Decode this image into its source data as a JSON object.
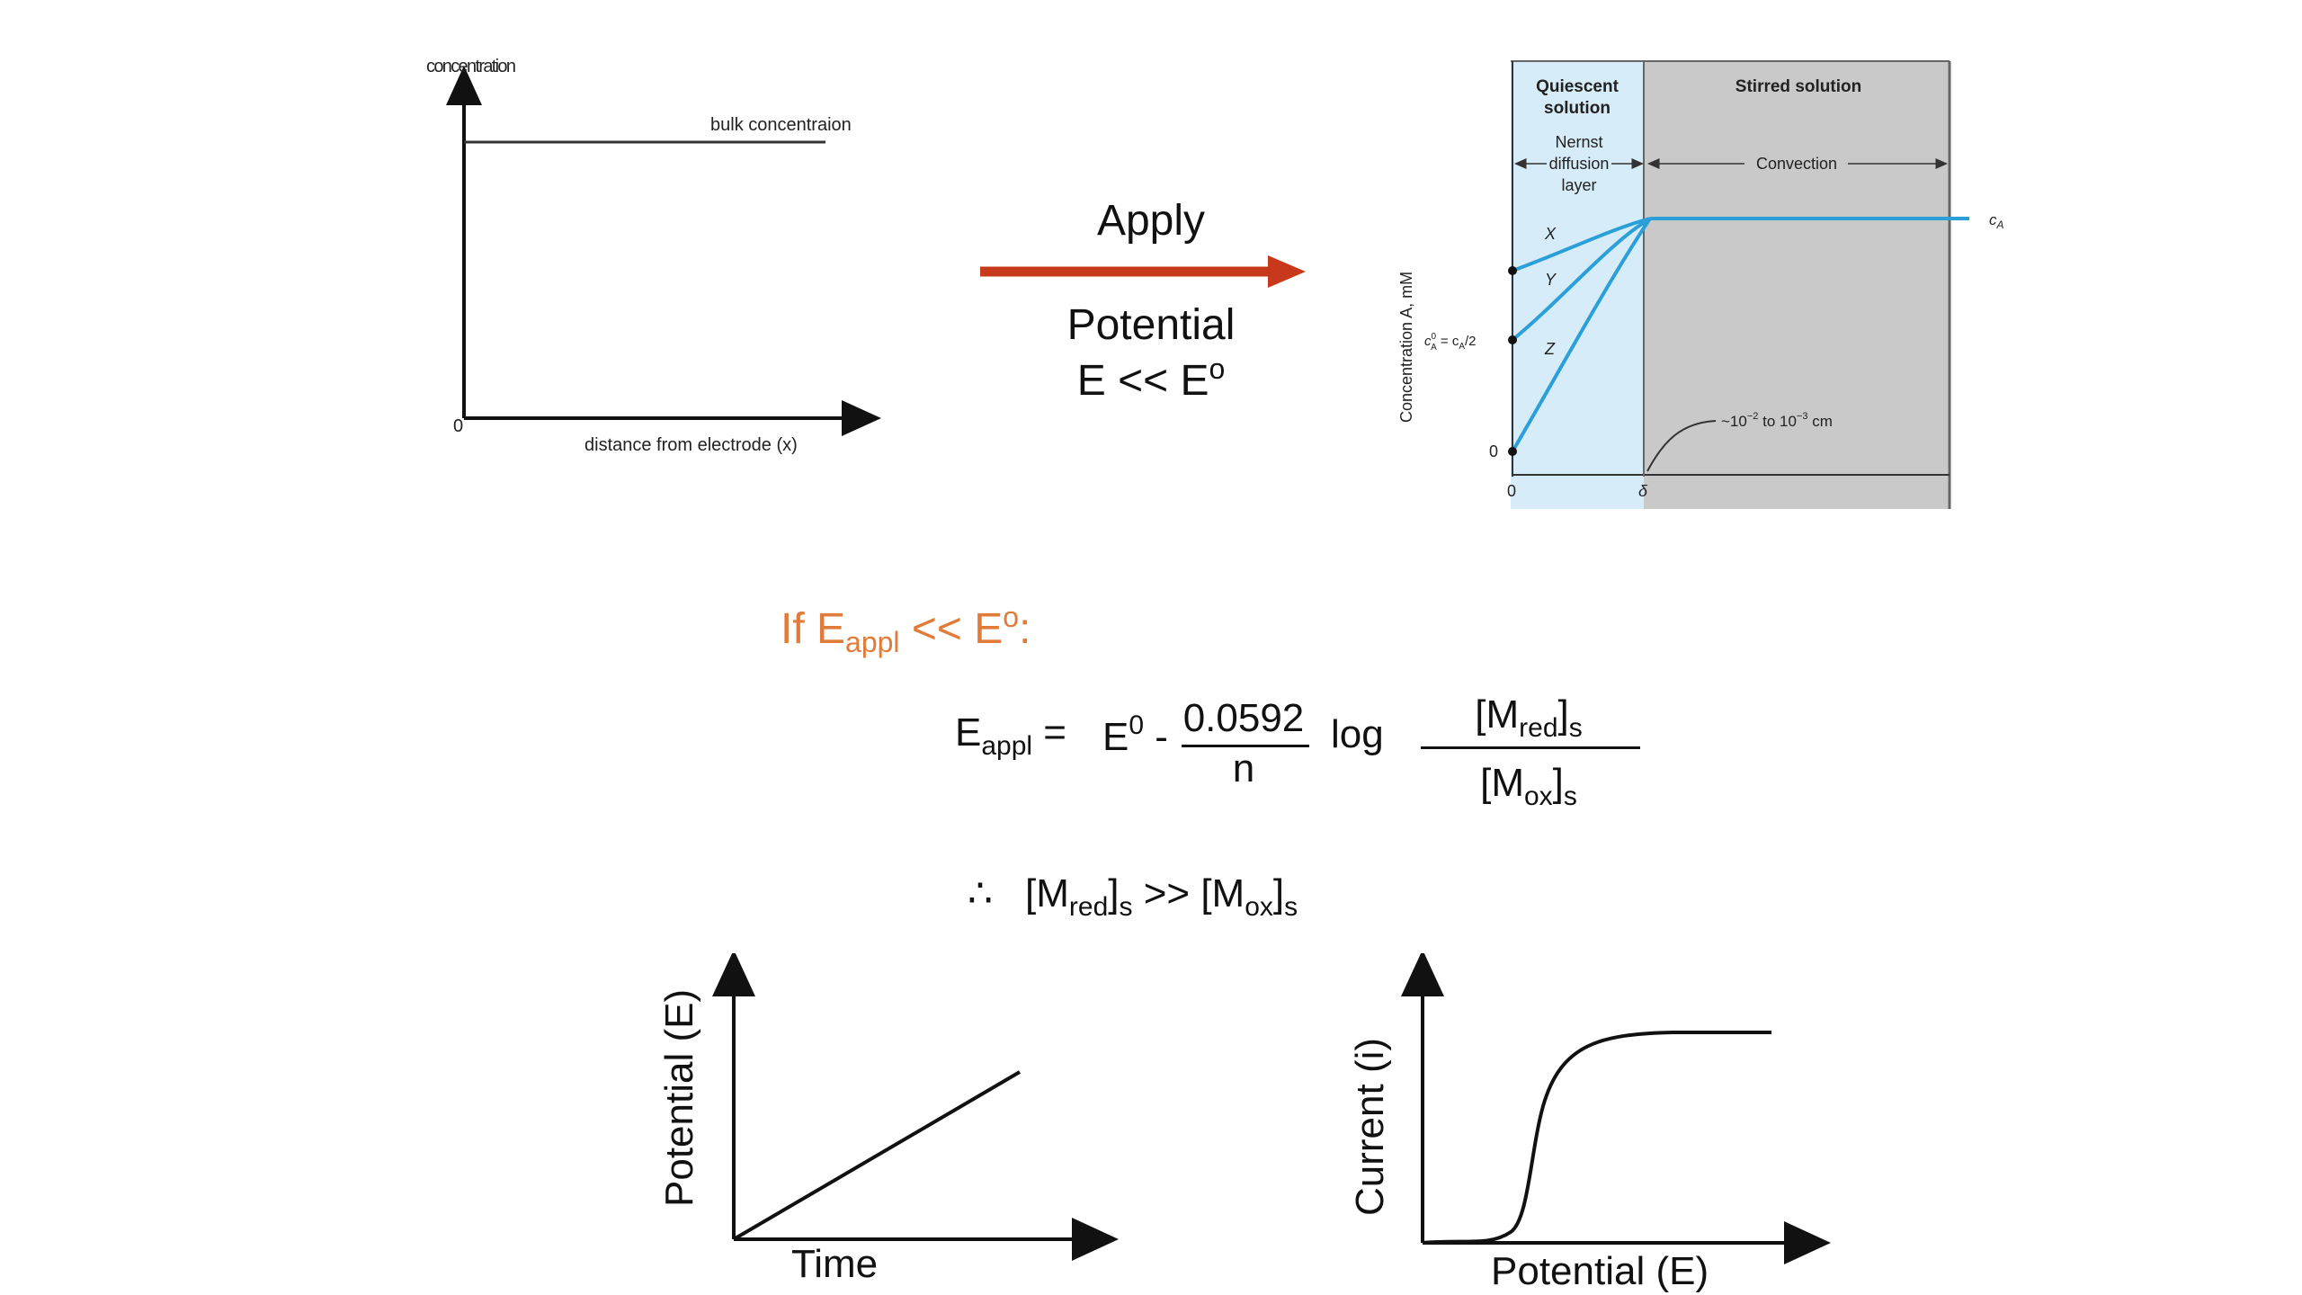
{
  "top_left_graph": {
    "y_axis_label": "concentration",
    "x_axis_label": "distance from electrode (x)",
    "origin_label": "0",
    "line_label": "bulk concentraion"
  },
  "apply_arrow": {
    "label_top": "Apply",
    "label_line2": "Potential",
    "label_line3": "E << E",
    "label_line3_sup": "o",
    "color": "#c8381b"
  },
  "nernst_diagram": {
    "quiescent_line1": "Quiescent",
    "quiescent_line2": "solution",
    "stirred_label": "Stirred solution",
    "nernst_line1": "Nernst",
    "nernst_line2": "diffusion",
    "nernst_line3": "layer",
    "convection_label": "Convection",
    "y_axis_label": "Concentration A, mM",
    "ca_label": "c",
    "ca_sub": "A",
    "half_label": "c",
    "half_label_sup": "0",
    "half_label_sub": "A",
    "half_label_rest": " = c",
    "half_label_rest_sub": "A",
    "half_label_tail": "/2",
    "zero_y": "0",
    "zero_x": "0",
    "delta_label": "δ",
    "curve_x": "X",
    "curve_y": "Y",
    "curve_z": "Z",
    "thickness_label": "~10",
    "thickness_exp1": "−2",
    "thickness_mid": " to 10",
    "thickness_exp2": "−3",
    "thickness_unit": " cm",
    "quiescent_color": "#d6ecf8",
    "stirred_color": "#c9c9c9",
    "curve_color": "#2a9fd8"
  },
  "condition": {
    "prefix": "If E",
    "sub": "appl",
    "middle": " << E",
    "sup": "o",
    "suffix": ":",
    "color": "#e07b39"
  },
  "equation": {
    "lhs": "E",
    "lhs_sub": "appl",
    "equals": " = ",
    "e0": "E",
    "e0_sup": "0",
    "minus": " -",
    "numerator": "0.0592",
    "denominator": "n",
    "log": "log",
    "frac_num": "[M",
    "frac_num_sub": "red",
    "frac_num_close": "]",
    "frac_num_sub2": "s",
    "frac_den": "[M",
    "frac_den_sub": "ox",
    "frac_den_close": "]",
    "frac_den_sub2": "s"
  },
  "conclusion": {
    "therefore": "∴",
    "left": "[M",
    "left_sub": "red",
    "left_close": "]",
    "left_sub2": "s",
    "op": " >> ",
    "right": "[M",
    "right_sub": "ox",
    "right_close": "]",
    "right_sub2": "s"
  },
  "potential_time_graph": {
    "y_axis_label": "Potential (E)",
    "x_axis_label": "Time"
  },
  "current_potential_graph": {
    "y_axis_label": "Current (i)",
    "x_axis_label": "Potential (E)"
  }
}
